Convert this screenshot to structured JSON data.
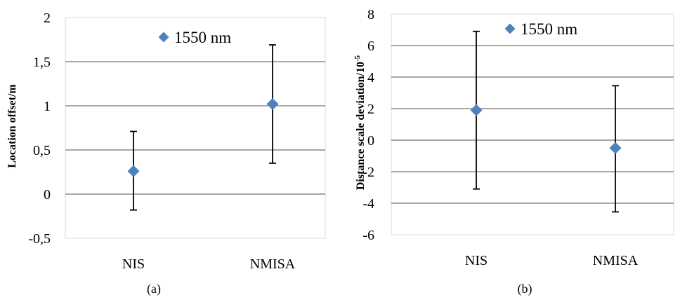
{
  "chart_data": [
    {
      "type": "scatter",
      "panel_label": "(a)",
      "ylabel": "Location offset/m",
      "categories": [
        "NIS",
        "NMISA"
      ],
      "ylim": [
        -0.5,
        2
      ],
      "yticks": [
        -0.5,
        0,
        0.5,
        1,
        1.5,
        2
      ],
      "ytick_labels": [
        "-0,5",
        "0",
        "0,5",
        "1",
        "1,5",
        "2"
      ],
      "grid": true,
      "legend": "top-center",
      "series": [
        {
          "name": "1550 nm",
          "color": "#4f81bd",
          "values": [
            0.26,
            1.02
          ],
          "error_low": [
            -0.18,
            0.35
          ],
          "error_high": [
            0.71,
            1.69
          ]
        }
      ]
    },
    {
      "type": "scatter",
      "panel_label": "(b)",
      "ylabel": "Distance scale deviation/10",
      "ylabel_sup": "-5",
      "categories": [
        "NIS",
        "NMISA"
      ],
      "ylim": [
        -6,
        8
      ],
      "yticks": [
        -6,
        -4,
        -2,
        0,
        2,
        4,
        6,
        8
      ],
      "ytick_labels": [
        "-6",
        "-4",
        "-2",
        "0",
        "2",
        "4",
        "6",
        "8"
      ],
      "grid": true,
      "legend": "top-center",
      "series": [
        {
          "name": "1550 nm",
          "color": "#4f81bd",
          "values": [
            1.9,
            -0.5
          ],
          "error_low": [
            -3.1,
            -4.55
          ],
          "error_high": [
            6.9,
            3.45
          ]
        }
      ]
    }
  ]
}
